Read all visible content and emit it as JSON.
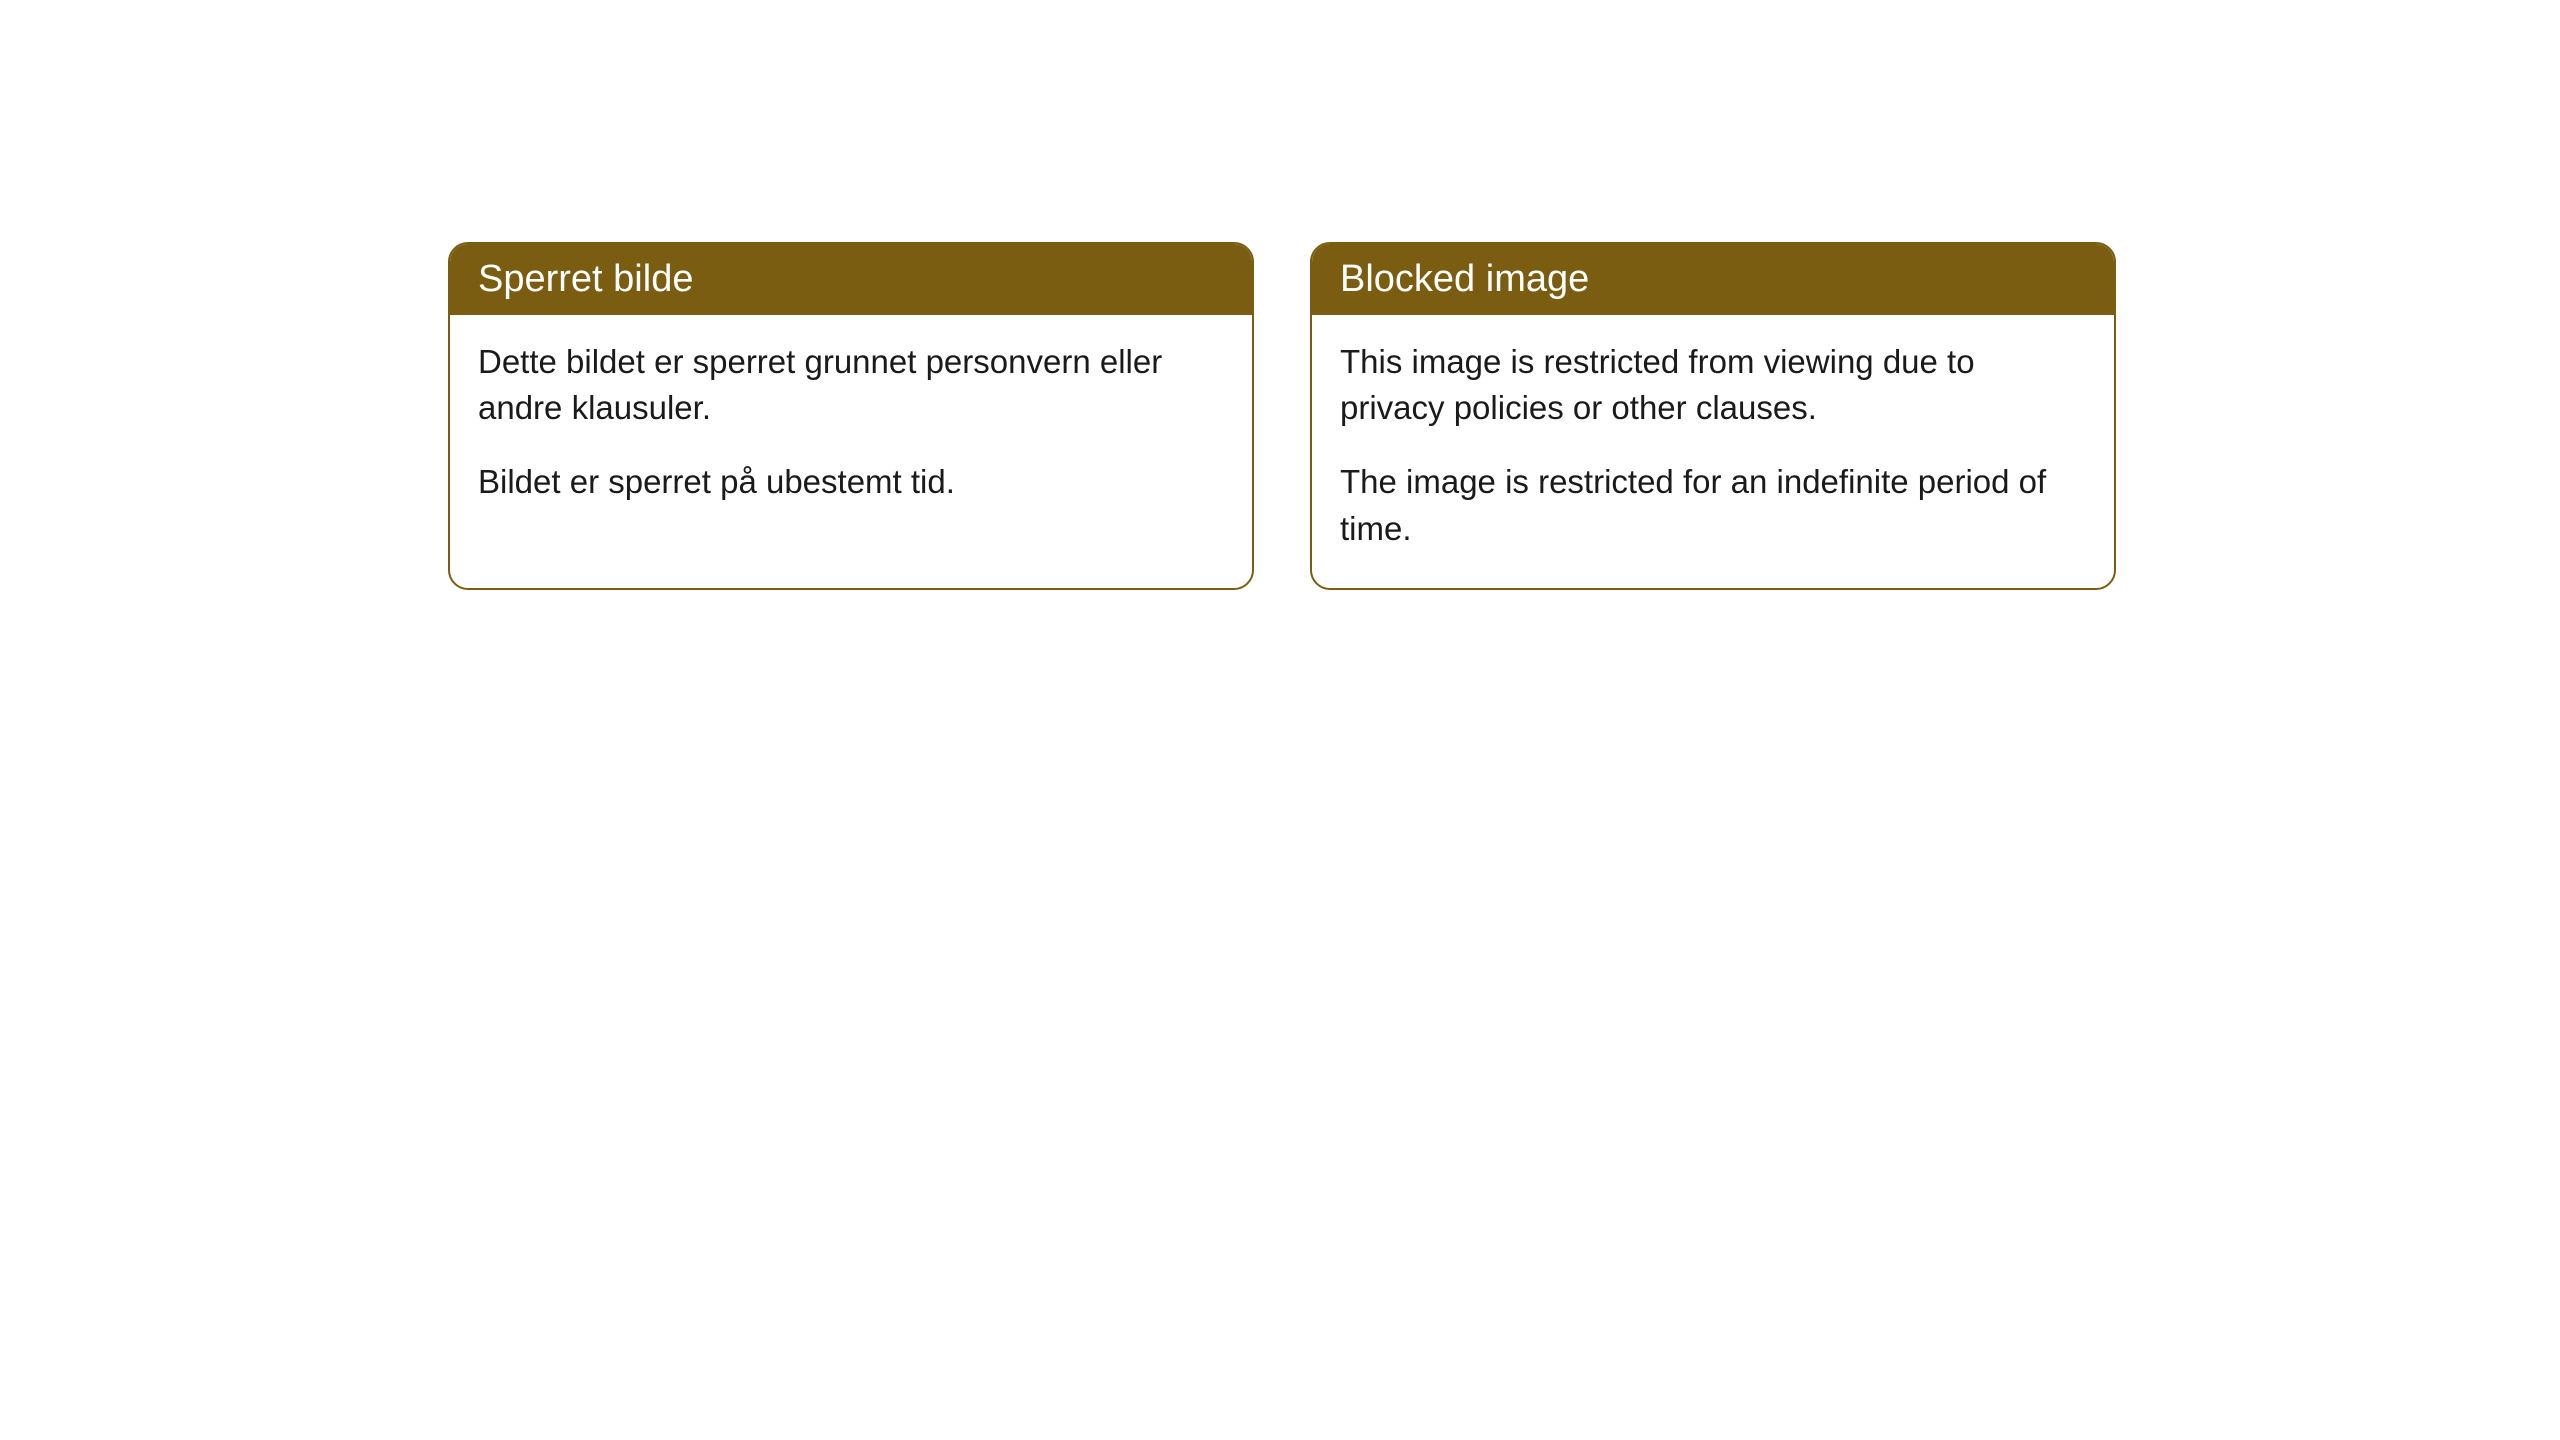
{
  "cards": [
    {
      "title": "Sperret bilde",
      "paragraph1": "Dette bildet er sperret grunnet personvern eller andre klausuler.",
      "paragraph2": "Bildet er sperret på ubestemt tid."
    },
    {
      "title": "Blocked image",
      "paragraph1": "This image is restricted from viewing due to privacy policies or other clauses.",
      "paragraph2": "The image is restricted for an indefinite period of time."
    }
  ],
  "style": {
    "header_bg_color": "#7a5d11",
    "header_text_color": "#ffffff",
    "border_color": "#7a5d11",
    "body_text_color": "#1a1a1a",
    "background_color": "#ffffff",
    "border_radius": 20,
    "title_fontsize": 38,
    "body_fontsize": 33
  }
}
